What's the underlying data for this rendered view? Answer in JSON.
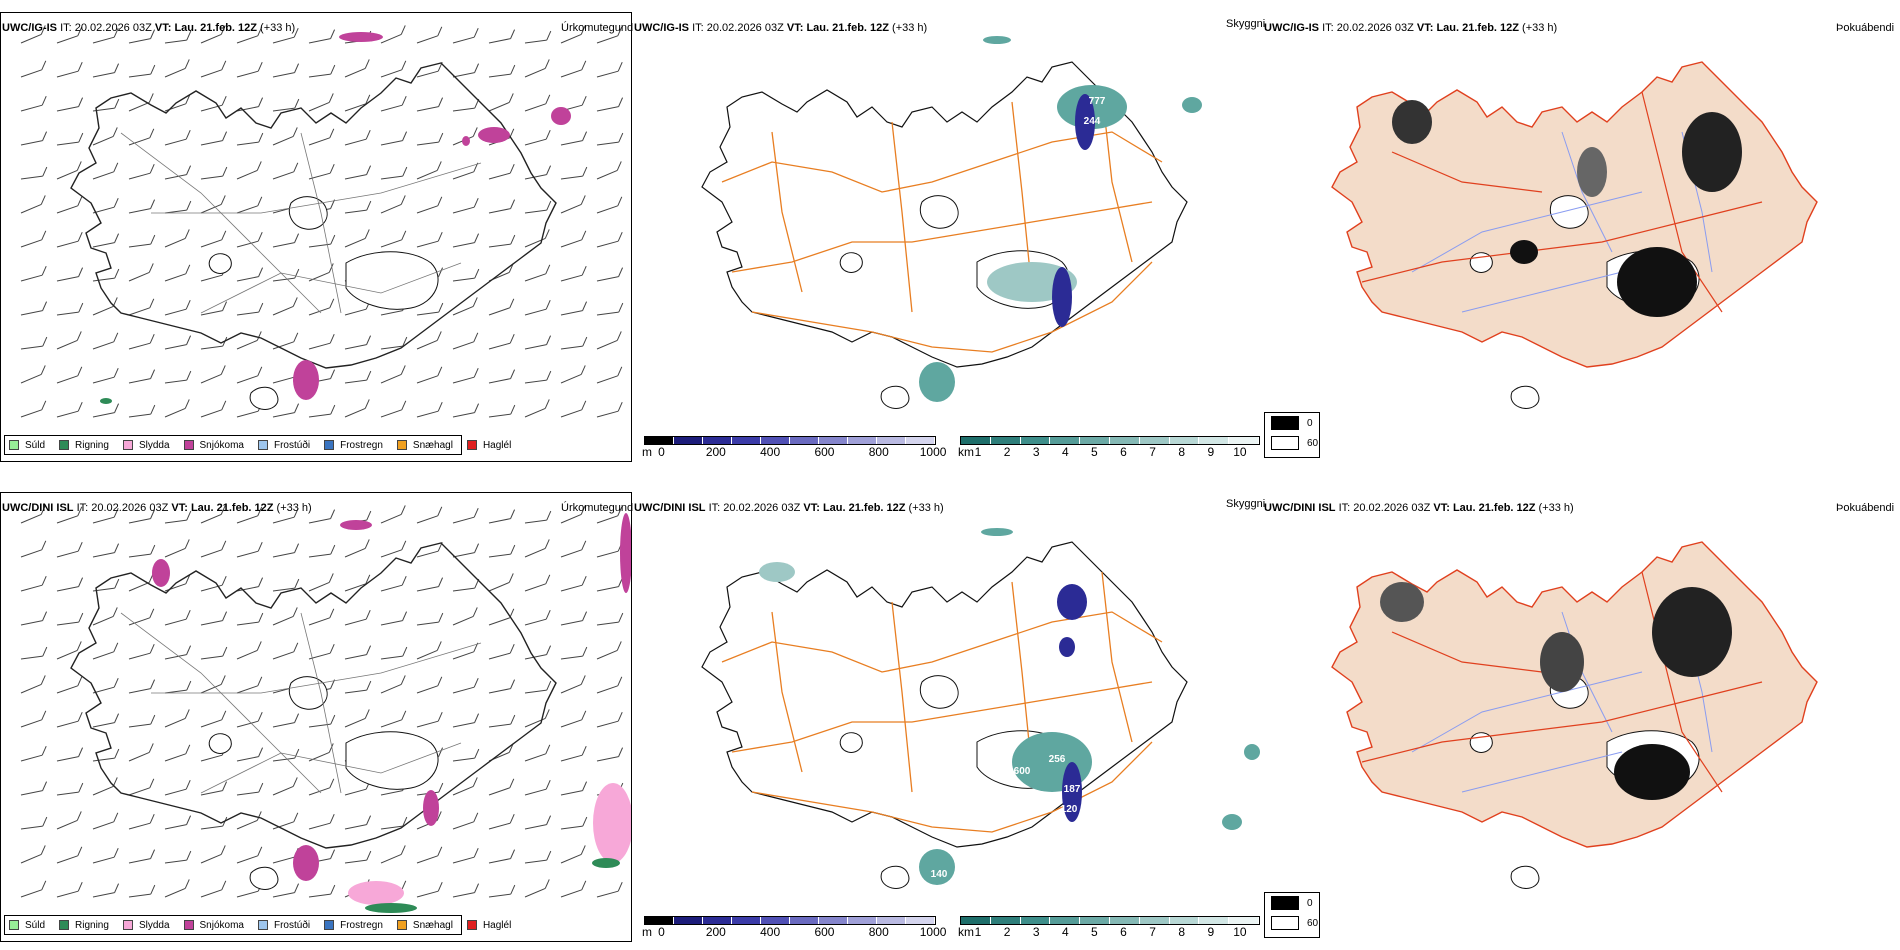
{
  "rows": [
    {
      "model": "UWC/IG-IS",
      "it_label": "IT:",
      "it_value": "20.02.2026 03Z",
      "vt_label": "VT:",
      "vt_value": "Lau. 21.feb. 12Z",
      "lead": "(+33 h)",
      "titles": {
        "precip": "Úrkomutegund",
        "cloud": "Skyggni",
        "fog": "Þokuábendi"
      },
      "cloud_labels": [
        "777",
        "244"
      ]
    },
    {
      "model": "UWC/DINI ISL",
      "it_label": "IT:",
      "it_value": "20.02.2026 03Z",
      "vt_label": "VT:",
      "vt_value": "Lau. 21.feb. 12Z",
      "lead": "(+33 h)",
      "titles": {
        "precip": "Úrkomutegund",
        "cloud": "Skyggni",
        "fog": "Þokuábendi"
      },
      "cloud_labels": [
        "256",
        "600",
        "187",
        "120",
        "140"
      ]
    }
  ],
  "precip_legend": [
    {
      "label": "Súld",
      "color": "#98ee98"
    },
    {
      "label": "Rigning",
      "color": "#2e8b57"
    },
    {
      "label": "Slydda",
      "color": "#f7a8d8"
    },
    {
      "label": "Snjókoma",
      "color": "#c0429a"
    },
    {
      "label": "Frostúði",
      "color": "#9ec6ee"
    },
    {
      "label": "Frostregn",
      "color": "#3a74c0"
    },
    {
      "label": "Snæhagl",
      "color": "#f0a020"
    },
    {
      "label": "Haglél",
      "color": "#e02020"
    }
  ],
  "ceiling_bar": {
    "unit": "m",
    "ticks": [
      "0",
      "200",
      "400",
      "600",
      "800",
      "1000"
    ],
    "colors": [
      "#000000",
      "#1c1c7a",
      "#2b2b95",
      "#3b3ba8",
      "#5050b5",
      "#6a6ac0",
      "#8585cc",
      "#a0a0d8",
      "#babae2",
      "#d5d5ee"
    ]
  },
  "visibility_bar": {
    "unit": "km",
    "ticks": [
      "1",
      "2",
      "3",
      "4",
      "5",
      "6",
      "7",
      "8",
      "9",
      "10"
    ],
    "colors": [
      "#1e6e6a",
      "#2e7e7a",
      "#3e8e8a",
      "#559c98",
      "#6caaa6",
      "#85b9b5",
      "#9ec8c5",
      "#b8d8d5",
      "#d2e7e5",
      "#ecf5f4"
    ]
  },
  "fog_legend": [
    {
      "label": "0",
      "color": "#000000"
    },
    {
      "label": "60",
      "color": "#ffffff"
    }
  ],
  "colors": {
    "coast": "#111111",
    "roads": "#e87e22",
    "land_fog": "#f3dcc9",
    "rivers": "#8a9cf0",
    "red_roads": "#e0401e",
    "snow": "#c0429a"
  }
}
